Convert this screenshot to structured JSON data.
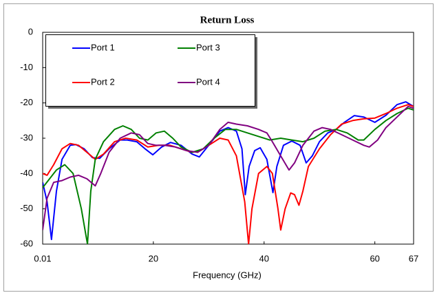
{
  "chart_data": {
    "type": "line",
    "title": "Return Loss",
    "x_label": "Frequency (GHz)",
    "xlim": [
      0.01,
      67
    ],
    "xticks": [
      0.01,
      20,
      40,
      60,
      67
    ],
    "ylim": [
      -60,
      0
    ],
    "yticks": [
      0,
      -10,
      -20,
      -30,
      -40,
      -50,
      -60
    ],
    "grid": false,
    "legend": "upper left",
    "series": [
      {
        "name": "Port 1",
        "color": "#0000ff",
        "x": [
          0.01,
          0.8,
          1.6,
          2.5,
          3.5,
          5,
          6,
          7.5,
          9,
          10.3,
          12,
          14,
          15.3,
          17,
          18.5,
          19.9,
          21.5,
          23.1,
          25,
          27,
          28.3,
          30,
          32,
          33.5,
          35,
          36,
          36.6,
          37.3,
          38.3,
          39.3,
          40.5,
          41.6,
          42.3,
          43.5,
          45,
          46.5,
          47.6,
          48.7,
          50,
          51.5,
          53,
          54.5,
          56.3,
          58,
          60,
          62,
          64,
          65.6,
          67
        ],
        "values": [
          -42.5,
          -48,
          -58.7,
          -45,
          -36,
          -32,
          -31.8,
          -33,
          -35.5,
          -35.7,
          -33,
          -30.5,
          -30.5,
          -31,
          -33,
          -34.7,
          -32.5,
          -31.2,
          -32,
          -34.5,
          -35.3,
          -32,
          -28,
          -27,
          -28,
          -33,
          -46,
          -38,
          -33.5,
          -32.7,
          -36,
          -45.4,
          -38,
          -32,
          -30.8,
          -32,
          -37,
          -35,
          -31,
          -28.5,
          -27.5,
          -25.5,
          -23.6,
          -24,
          -25.5,
          -23.5,
          -20.5,
          -19.7,
          -21
        ]
      },
      {
        "name": "Port 2",
        "color": "#ff0000",
        "x": [
          0.01,
          0.8,
          2,
          3.5,
          5,
          6.5,
          8,
          9.5,
          11,
          13,
          15,
          17,
          19,
          21,
          23,
          25,
          27,
          28.5,
          30,
          32,
          33.5,
          35,
          36.5,
          37.2,
          37.8,
          39,
          40.5,
          41.5,
          42.5,
          43,
          43.8,
          44.8,
          45.5,
          46.3,
          47,
          48,
          50,
          52,
          54,
          56,
          58,
          60,
          62,
          64,
          66,
          67
        ],
        "values": [
          -40,
          -40.5,
          -37.5,
          -33,
          -31.5,
          -32,
          -34,
          -36,
          -34.5,
          -31,
          -30,
          -30.5,
          -32.5,
          -32,
          -32,
          -33,
          -34,
          -33.5,
          -32,
          -30,
          -30.5,
          -35,
          -48,
          -60,
          -50,
          -40,
          -38,
          -40,
          -50,
          -56,
          -50,
          -45.5,
          -46,
          -49,
          -45,
          -38,
          -33,
          -29,
          -26,
          -25,
          -24.5,
          -24.3,
          -23,
          -21.5,
          -20.5,
          -21
        ]
      },
      {
        "name": "Port 3",
        "color": "#008000",
        "x": [
          0.01,
          1,
          2.5,
          4,
          5.5,
          7,
          8.1,
          8.7,
          9.5,
          11,
          13,
          14.5,
          16,
          17.5,
          19,
          20.5,
          22,
          23.5,
          25,
          27,
          29,
          31,
          33,
          35,
          37,
          39,
          41,
          43,
          45,
          47,
          49,
          51,
          53,
          55,
          57,
          58,
          60,
          62,
          64,
          66,
          67
        ],
        "values": [
          -44,
          -42,
          -39,
          -37.5,
          -40,
          -50,
          -60,
          -45,
          -36,
          -31,
          -27.5,
          -26.5,
          -27.5,
          -30,
          -30.5,
          -28.5,
          -28,
          -30,
          -32.5,
          -34,
          -33,
          -30,
          -27.5,
          -27.5,
          -28.5,
          -29.5,
          -30.5,
          -30,
          -30.5,
          -31,
          -30,
          -28,
          -27.5,
          -28.5,
          -30.5,
          -30.5,
          -27.5,
          -25,
          -23,
          -21.5,
          -22
        ]
      },
      {
        "name": "Port 4",
        "color": "#800080",
        "x": [
          0.01,
          0.8,
          2,
          3.5,
          5,
          6.5,
          8,
          9.5,
          10.5,
          12,
          14,
          16,
          17.5,
          19,
          20.5,
          22,
          24,
          26,
          28,
          30,
          32,
          33.5,
          35,
          37,
          39,
          40.5,
          41.5,
          43,
          44.5,
          45.5,
          47,
          49,
          50.5,
          52,
          54,
          56,
          58,
          59,
          60.5,
          62,
          64,
          66,
          67
        ],
        "values": [
          -56,
          -47,
          -42.5,
          -42,
          -41,
          -40.5,
          -41.5,
          -43.5,
          -40,
          -34,
          -30,
          -28.5,
          -29,
          -31.5,
          -32,
          -32,
          -32.5,
          -33.5,
          -34,
          -32,
          -27.5,
          -25.5,
          -26,
          -26.5,
          -27.5,
          -28.5,
          -31,
          -35,
          -39,
          -37,
          -32,
          -28,
          -27,
          -27.5,
          -29,
          -30.5,
          -32,
          -32.5,
          -30.5,
          -27,
          -24,
          -21,
          -21.5
        ]
      }
    ]
  }
}
